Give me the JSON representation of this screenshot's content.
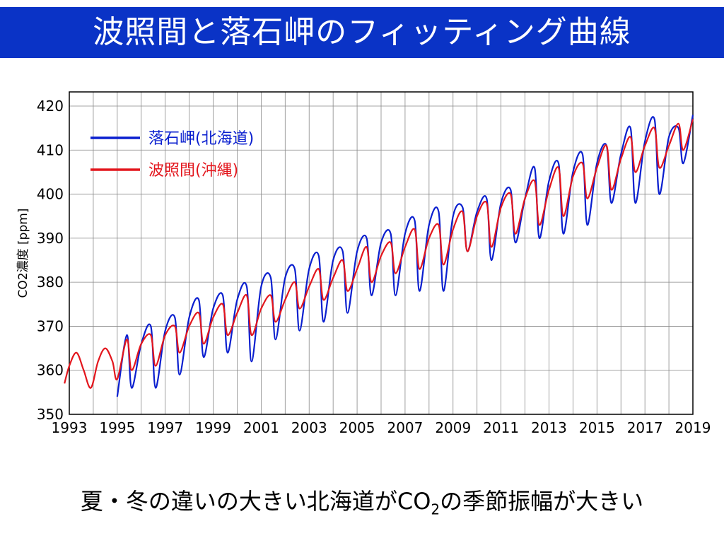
{
  "slide": {
    "title": "波照間と落石岬のフィッティング曲線",
    "caption_part1": "夏・冬の違いの大きい北海道がCO",
    "caption_sub": "2",
    "caption_part2": "の季節振幅が大きい"
  },
  "colors": {
    "title_bg": "#0a33c6",
    "title_text": "#ffffff"
  },
  "chart_data": {
    "type": "line",
    "ylabel": "CO2濃度 [ppm]",
    "xlabel": "",
    "xlim": [
      1993,
      2019
    ],
    "ylim": [
      350,
      420
    ],
    "xticks": [
      "1993",
      "1995",
      "1997",
      "1999",
      "2001",
      "2003",
      "2005",
      "2007",
      "2009",
      "2011",
      "2013",
      "2015",
      "2017",
      "2019"
    ],
    "yticks": [
      "350",
      "360",
      "370",
      "380",
      "390",
      "400",
      "410",
      "420"
    ],
    "grid": true,
    "legend_position": "top-left",
    "series": [
      {
        "name": "落石岬(北海道)",
        "color": "#0a1fcf",
        "x": [
          1995.0,
          1995.4,
          1995.6,
          1996.0,
          1996.4,
          1996.6,
          1997.0,
          1997.4,
          1997.6,
          1998.0,
          1998.4,
          1998.6,
          1999.0,
          1999.4,
          1999.6,
          2000.0,
          2000.4,
          2000.6,
          2001.0,
          2001.4,
          2001.6,
          2002.0,
          2002.4,
          2002.6,
          2003.0,
          2003.4,
          2003.6,
          2004.0,
          2004.4,
          2004.6,
          2005.0,
          2005.4,
          2005.6,
          2006.0,
          2006.4,
          2006.6,
          2007.0,
          2007.4,
          2007.6,
          2008.0,
          2008.4,
          2008.6,
          2009.0,
          2009.4,
          2009.6,
          2010.0,
          2010.4,
          2010.6,
          2011.0,
          2011.4,
          2011.6,
          2012.0,
          2012.4,
          2012.6,
          2013.0,
          2013.4,
          2013.6,
          2014.0,
          2014.4,
          2014.6,
          2015.0,
          2015.4,
          2015.6,
          2016.0,
          2016.4,
          2016.6,
          2017.0,
          2017.4,
          2017.6,
          2018.0,
          2018.4,
          2018.6,
          2019.0
        ],
        "y": [
          354,
          368,
          356,
          366,
          370,
          356,
          369,
          372,
          359,
          372,
          376,
          363,
          374,
          377,
          364,
          376,
          379,
          362,
          379,
          381,
          367,
          381,
          383,
          369,
          383,
          386,
          371,
          385,
          387,
          373,
          387,
          390,
          377,
          389,
          391,
          377,
          391,
          394,
          378,
          393,
          396,
          378,
          395,
          397,
          387,
          396,
          399,
          385,
          398,
          401,
          389,
          399,
          406,
          390,
          403,
          407,
          391,
          405,
          409,
          393,
          407,
          411,
          398,
          409,
          415,
          398,
          412,
          417,
          400,
          413,
          415,
          407,
          418
        ]
      },
      {
        "name": "波照間(沖縄)",
        "color": "#e3161d",
        "x": [
          1992.8,
          1993.0,
          1993.3,
          1993.6,
          1993.9,
          1994.2,
          1994.5,
          1994.8,
          1995.0,
          1995.4,
          1995.6,
          1996.0,
          1996.4,
          1996.6,
          1997.0,
          1997.4,
          1997.6,
          1998.0,
          1998.4,
          1998.6,
          1999.0,
          1999.4,
          1999.6,
          2000.0,
          2000.4,
          2000.6,
          2001.0,
          2001.4,
          2001.6,
          2002.0,
          2002.4,
          2002.6,
          2003.0,
          2003.4,
          2003.6,
          2004.0,
          2004.4,
          2004.6,
          2005.0,
          2005.4,
          2005.6,
          2006.0,
          2006.4,
          2006.6,
          2007.0,
          2007.4,
          2007.6,
          2008.0,
          2008.4,
          2008.6,
          2009.0,
          2009.4,
          2009.6,
          2010.0,
          2010.4,
          2010.6,
          2011.0,
          2011.4,
          2011.6,
          2012.0,
          2012.4,
          2012.6,
          2013.0,
          2013.4,
          2013.6,
          2014.0,
          2014.4,
          2014.6,
          2015.0,
          2015.4,
          2015.6,
          2016.0,
          2016.4,
          2016.6,
          2017.0,
          2017.4,
          2017.6,
          2018.0,
          2018.4,
          2018.6,
          2019.0
        ],
        "y": [
          357,
          361,
          364,
          360,
          356,
          362,
          365,
          362,
          358,
          367,
          360,
          366,
          368,
          361,
          368,
          370,
          364,
          370,
          373,
          366,
          372,
          375,
          368,
          373,
          377,
          368,
          374,
          377,
          371,
          376,
          380,
          374,
          379,
          383,
          376,
          381,
          385,
          378,
          383,
          388,
          380,
          386,
          389,
          382,
          388,
          392,
          383,
          390,
          393,
          384,
          392,
          396,
          387,
          395,
          398,
          388,
          397,
          400,
          391,
          399,
          403,
          393,
          401,
          406,
          395,
          404,
          407,
          399,
          406,
          411,
          401,
          408,
          413,
          405,
          411,
          415,
          406,
          411,
          416,
          410,
          417
        ]
      }
    ]
  }
}
